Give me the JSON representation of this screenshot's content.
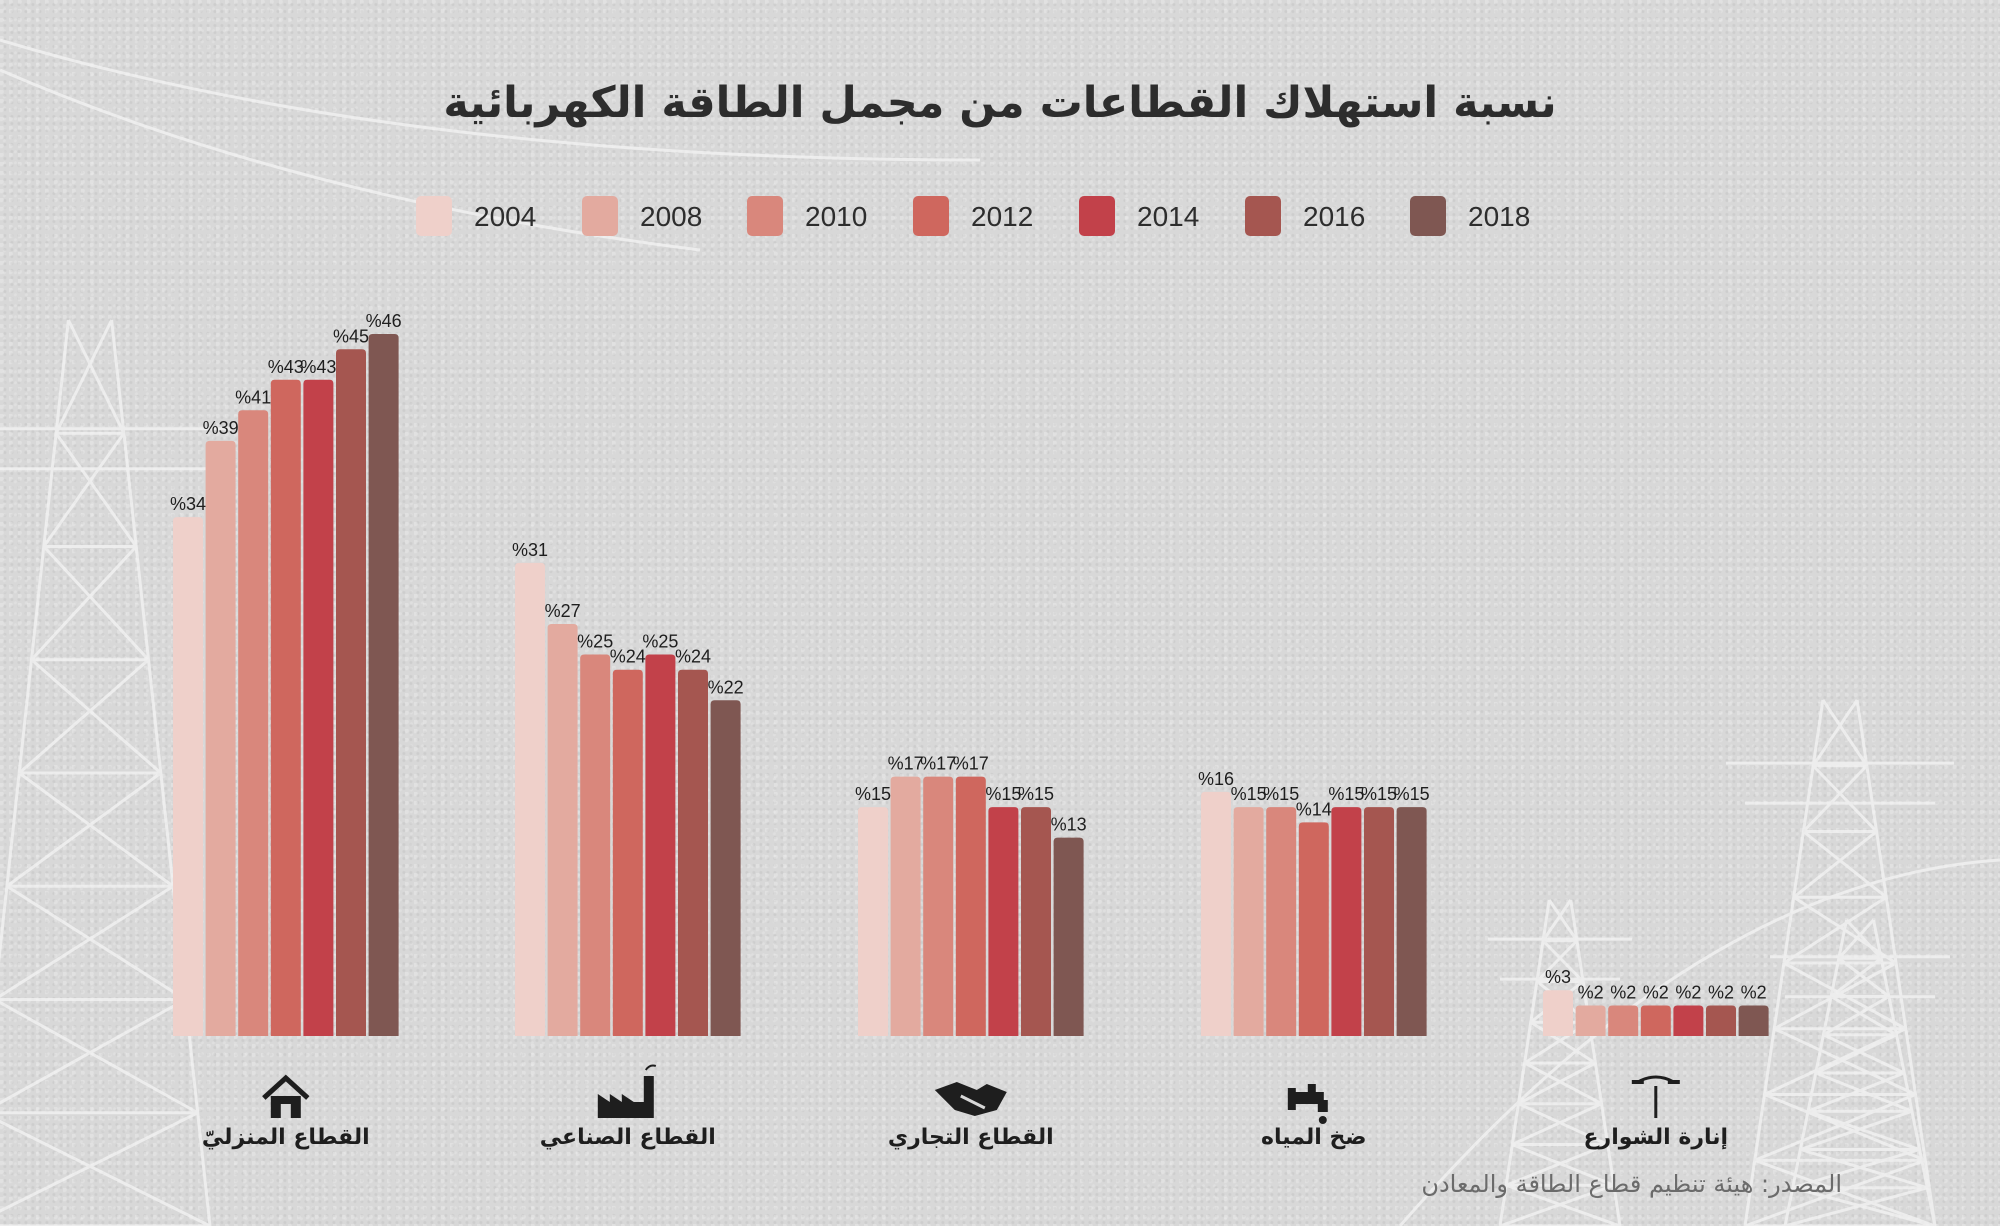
{
  "header": {
    "title": "نسبة استهلاك القطاعات من مجمل الطاقة الكهربائية"
  },
  "source_text": "المصدر: هيئة تنظيم قطاع الطاقة والمعادن",
  "value_prefix": "%",
  "legend_placement": "top",
  "colors": [
    "#efd0ca",
    "#e3aa9f",
    "#d9877c",
    "#cf675e",
    "#c2414a",
    "#a55650",
    "#7f5752"
  ],
  "chart_data": {
    "type": "bar",
    "title": "نسبة استهلاك القطاعات من مجمل الطاقة الكهربائية",
    "xlabel": "",
    "ylabel": "",
    "grid": false,
    "ylim": [
      0,
      46
    ],
    "categories": [
      "القطاع المنزليّ",
      "القطاع الصناعي",
      "القطاع التجاري",
      "ضخ المياه",
      "إنارة الشوارع"
    ],
    "category_icons": [
      "house-icon",
      "factory-icon",
      "handshake-icon",
      "faucet-icon",
      "street-lamp-icon"
    ],
    "series": [
      {
        "name": "2004",
        "values": [
          34,
          31,
          15,
          16,
          3
        ]
      },
      {
        "name": "2008",
        "values": [
          39,
          27,
          17,
          15,
          2
        ]
      },
      {
        "name": "2010",
        "values": [
          41,
          25,
          17,
          15,
          2
        ]
      },
      {
        "name": "2012",
        "values": [
          43,
          24,
          17,
          14,
          2
        ]
      },
      {
        "name": "2014",
        "values": [
          43,
          25,
          15,
          15,
          2
        ]
      },
      {
        "name": "2016",
        "values": [
          45,
          24,
          15,
          15,
          2
        ]
      },
      {
        "name": "2018",
        "values": [
          46,
          22,
          13,
          15,
          2
        ]
      }
    ]
  }
}
